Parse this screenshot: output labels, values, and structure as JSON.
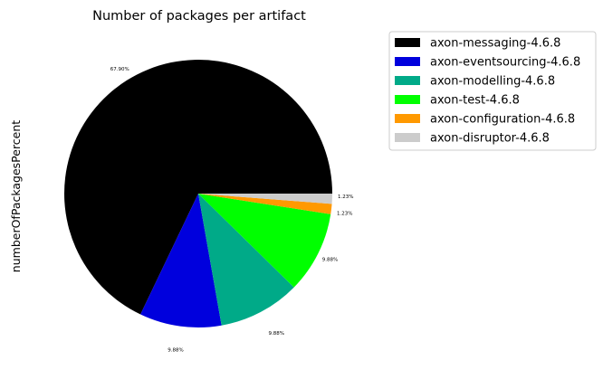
{
  "chart_data": {
    "type": "pie",
    "title": "Number of packages per artifact",
    "ylabel": "numberOfPackagesPercent",
    "legend_position": "outside-right",
    "labels": [
      "axon-messaging-4.6.8",
      "axon-eventsourcing-4.6.8",
      "axon-modelling-4.6.8",
      "axon-test-4.6.8",
      "axon-configuration-4.6.8",
      "axon-disruptor-4.6.8"
    ],
    "values": [
      67.9,
      9.88,
      9.88,
      9.88,
      1.23,
      1.23
    ],
    "value_labels": [
      "67.90%",
      "9.88%",
      "9.88%",
      "9.88%",
      "1.23%",
      "1.23%"
    ],
    "colors": [
      "#000000",
      "#0000dd",
      "#00aa88",
      "#00ff00",
      "#ff9900",
      "#cccccc"
    ]
  }
}
